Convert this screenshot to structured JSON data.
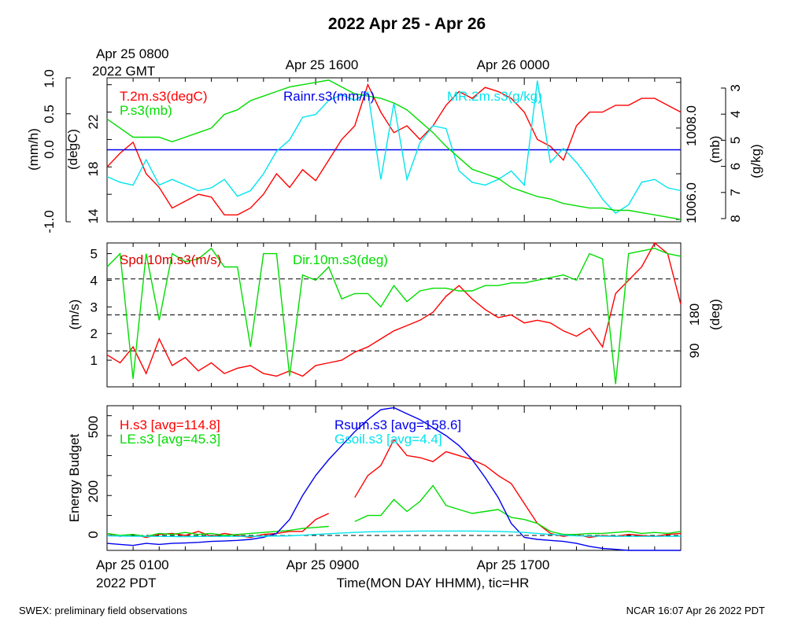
{
  "title": "2022 Apr 25 - Apr 26",
  "top_time_labels": [
    "Apr 25 0800",
    "Apr 25 1600",
    "Apr 26 0000"
  ],
  "top_time_sub": "2022 GMT",
  "bottom_time_labels": [
    "Apr 25 0100",
    "Apr 25 0900",
    "Apr 25 1700"
  ],
  "bottom_time_sub": "2022 PDT",
  "xlabel": "Time(MON DAY HHMM), tic=HR",
  "footer_left": "SWEX: preliminary field observations",
  "footer_right": "NCAR 16:07 Apr 26 2022 PDT",
  "colors": {
    "red": "#ff0000",
    "green": "#00dd00",
    "blue": "#0000ee",
    "cyan": "#00e5ee"
  },
  "chart_data": [
    {
      "type": "line",
      "x_unit": "hour since Apr 25 0000 PDT",
      "xlim": [
        1,
        23
      ],
      "axes": {
        "rain": {
          "ylabel": "(mm/h)",
          "ylim": [
            -1.0,
            1.0
          ],
          "ticks": [
            "-1.0",
            "0.0",
            "0.5",
            "1.0"
          ]
        },
        "temp": {
          "ylabel": "(degC)",
          "ylim": [
            14,
            24.5
          ],
          "ticks": [
            "14",
            "18",
            "22"
          ]
        },
        "pres": {
          "ylabel": "(mb)",
          "ylim": [
            1005.95,
            1009.1
          ],
          "ticks": [
            "1006.0",
            "1008.0"
          ]
        },
        "mr": {
          "ylabel": "(g/kg)",
          "ylim": [
            3,
            8.1
          ],
          "ticks": [
            "3",
            "4",
            "5",
            "6",
            "7",
            "8"
          ]
        }
      },
      "series": [
        {
          "name": "T.2m.s3(degC)",
          "axis": "temp",
          "color": "red",
          "x": [
            1,
            1.5,
            2,
            2.5,
            3,
            3.5,
            4,
            4.5,
            5,
            5.5,
            6,
            6.5,
            7,
            7.5,
            8,
            8.5,
            9,
            9.5,
            10,
            10.5,
            11,
            11.5,
            12,
            12.5,
            13,
            13.5,
            14,
            14.5,
            15,
            15.5,
            16,
            16.5,
            17,
            17.5,
            18,
            18.5,
            19,
            19.5,
            20,
            20.5,
            21,
            21.5,
            22,
            22.5,
            23
          ],
          "y": [
            18,
            19,
            19.8,
            17.5,
            16.5,
            15,
            15.5,
            16,
            15.8,
            14.5,
            14.5,
            15,
            16,
            17.5,
            16.5,
            17.8,
            17,
            18.5,
            20,
            21,
            24,
            22,
            20.5,
            21,
            20,
            21,
            22.5,
            23.5,
            23,
            23.8,
            23.5,
            23,
            22,
            20,
            19.5,
            18.5,
            21,
            22,
            22,
            22.5,
            22.5,
            23,
            23,
            22.5,
            22
          ]
        },
        {
          "name": "Rainr.s3(mm/h)",
          "axis": "rain",
          "color": "blue",
          "x": [
            1,
            23
          ],
          "y": [
            0,
            0
          ]
        },
        {
          "name": "MR.2m.s3(g/kg)",
          "axis": "mr",
          "color": "cyan",
          "x": [
            1,
            1.5,
            2,
            2.5,
            3,
            3.5,
            4,
            4.5,
            5,
            5.5,
            6,
            6.5,
            7,
            7.5,
            8,
            8.5,
            9,
            9.5,
            10,
            10.5,
            11,
            11.5,
            12,
            12.5,
            13,
            13.5,
            14,
            14.5,
            15,
            15.5,
            16,
            16.5,
            17,
            17.5,
            18,
            18.5,
            19,
            19.5,
            20,
            20.5,
            21,
            21.5,
            22,
            22.5,
            23
          ],
          "y": [
            4.6,
            4.4,
            4.3,
            5.2,
            4.3,
            4.5,
            4.3,
            4.1,
            4.2,
            4.5,
            3.9,
            4.1,
            4.7,
            5.5,
            5.9,
            6.7,
            6.8,
            7.3,
            7.5,
            7.3,
            7.6,
            4.5,
            7.2,
            4.5,
            5.8,
            6.4,
            6.3,
            4.8,
            4.4,
            4.3,
            4.5,
            4.8,
            4.3,
            8,
            5.1,
            5.6,
            5.1,
            4.5,
            3.8,
            3.3,
            3.6,
            4.4,
            4.5,
            4.2,
            4.1
          ]
        },
        {
          "name": "P.s3(mb)",
          "axis": "pres",
          "color": "green",
          "x": [
            1,
            1.5,
            2,
            2.5,
            3,
            3.5,
            4,
            4.5,
            5,
            5.5,
            6,
            6.5,
            7,
            7.5,
            8,
            8.5,
            9,
            9.5,
            10,
            10.5,
            11,
            11.5,
            12,
            12.5,
            13,
            13.5,
            14,
            14.5,
            15,
            15.5,
            16,
            16.5,
            17,
            17.5,
            18,
            18.5,
            19,
            19.5,
            20,
            20.5,
            21,
            21.5,
            22,
            22.5,
            23
          ],
          "y": [
            1008.2,
            1008.0,
            1007.8,
            1007.8,
            1007.8,
            1007.7,
            1007.8,
            1007.9,
            1008.0,
            1008.3,
            1008.4,
            1008.6,
            1008.7,
            1008.8,
            1008.9,
            1008.95,
            1009.0,
            1009.05,
            1008.9,
            1008.75,
            1008.7,
            1008.65,
            1008.55,
            1008.4,
            1008.15,
            1007.9,
            1007.6,
            1007.35,
            1007.1,
            1007.0,
            1006.9,
            1006.7,
            1006.6,
            1006.5,
            1006.45,
            1006.35,
            1006.3,
            1006.25,
            1006.25,
            1006.2,
            1006.2,
            1006.15,
            1006.1,
            1006.05,
            1006.0
          ]
        }
      ]
    },
    {
      "type": "line",
      "x_unit": "hour since Apr 25 0000 PDT",
      "xlim": [
        1,
        23
      ],
      "axes": {
        "spd": {
          "ylabel": "(m/s)",
          "ylim": [
            0,
            5.4
          ],
          "ticks": [
            "1",
            "2",
            "3",
            "4",
            "5"
          ]
        },
        "dir": {
          "ylabel": "(deg)",
          "ticks": [
            "90",
            "180"
          ],
          "ref_lines_deg": [
            90,
            180,
            270
          ]
        }
      },
      "series": [
        {
          "name": "Spd.10m.s3(m/s)",
          "axis": "spd",
          "color": "red",
          "x": [
            1,
            1.5,
            2,
            2.5,
            3,
            3.5,
            4,
            4.5,
            5,
            5.5,
            6,
            6.5,
            7,
            7.5,
            8,
            8.5,
            9,
            9.5,
            10,
            10.5,
            11,
            11.5,
            12,
            12.5,
            13,
            13.5,
            14,
            14.5,
            15,
            15.5,
            16,
            16.5,
            17,
            17.5,
            18,
            18.5,
            19,
            19.5,
            20,
            20.5,
            21,
            21.5,
            22,
            22.5,
            23
          ],
          "y": [
            1.2,
            0.9,
            1.5,
            0.5,
            1.8,
            0.8,
            1.1,
            0.6,
            0.9,
            0.5,
            0.7,
            0.8,
            0.5,
            0.4,
            0.6,
            0.4,
            0.8,
            0.9,
            1,
            1.3,
            1.5,
            1.8,
            2.1,
            2.3,
            2.5,
            2.8,
            3.4,
            3.8,
            3.3,
            2.9,
            2.6,
            2.7,
            2.4,
            2.5,
            2.4,
            2.1,
            1.9,
            2.2,
            1.5,
            3.5,
            4.0,
            4.5,
            5.4,
            5.0,
            3.1
          ]
        },
        {
          "name": "Dir.10m.s3(deg)",
          "axis": "spd",
          "color": "green",
          "x": [
            1,
            1.5,
            2,
            2.5,
            3,
            3.5,
            4,
            4.5,
            5,
            5.5,
            6,
            6.5,
            7,
            7.5,
            8,
            8.5,
            9,
            9.5,
            10,
            10.5,
            11,
            11.5,
            12,
            12.5,
            13,
            13.5,
            14,
            14.5,
            15,
            15.5,
            16,
            16.5,
            17,
            17.5,
            18,
            18.5,
            19,
            19.5,
            20,
            20.5,
            21,
            21.5,
            22,
            22.5,
            23
          ],
          "y": [
            4.5,
            5,
            0.3,
            5.0,
            2.5,
            5.0,
            4.7,
            4.8,
            5.2,
            4.5,
            4.5,
            1.5,
            5,
            5,
            0.4,
            4.2,
            4.0,
            4.5,
            3.3,
            3.5,
            3.5,
            3.0,
            3.8,
            3.2,
            3.6,
            3.7,
            3.7,
            3.6,
            3.6,
            3.8,
            3.8,
            3.9,
            3.9,
            4.0,
            4.1,
            4.2,
            4.0,
            5.0,
            4.8,
            0.1,
            5.0,
            5.1,
            5.2,
            5.0,
            4.9
          ]
        }
      ]
    },
    {
      "type": "line",
      "x_unit": "hour since Apr 25 0000 PDT",
      "xlim": [
        1,
        23
      ],
      "ylabel": "Energy Budget",
      "ylim": [
        -75,
        650
      ],
      "ticks": [
        "0",
        "200",
        "500"
      ],
      "series": [
        {
          "name": "H.s3 [avg=114.8]",
          "color": "red",
          "x": [
            1,
            1.5,
            2,
            2.5,
            3,
            3.5,
            4,
            4.5,
            5,
            5.5,
            6,
            6.5,
            7,
            7.5,
            8,
            8.5,
            9,
            9.5,
            10,
            10.5,
            11,
            11.5,
            12,
            12.5,
            13,
            13.5,
            14,
            14.5,
            15,
            15.5,
            16,
            16.5,
            17,
            17.5,
            18,
            18.5,
            19,
            19.5,
            20,
            20.5,
            21,
            21.5,
            22,
            22.5,
            23
          ],
          "y": [
            10,
            -5,
            5,
            -10,
            5,
            10,
            0,
            20,
            -5,
            10,
            0,
            -10,
            5,
            10,
            20,
            20,
            80,
            110,
            null,
            190,
            300,
            350,
            480,
            400,
            390,
            370,
            420,
            400,
            380,
            350,
            300,
            260,
            160,
            60,
            10,
            -5,
            5,
            -10,
            0,
            -5,
            5,
            0,
            -5,
            5,
            10
          ]
        },
        {
          "name": "LE.s3 [avg=45.3]",
          "color": "green",
          "x": [
            1,
            1.5,
            2,
            2.5,
            3,
            3.5,
            4,
            4.5,
            5,
            5.5,
            6,
            6.5,
            7,
            7.5,
            8,
            8.5,
            9,
            9.5,
            10,
            10.5,
            11,
            11.5,
            12,
            12.5,
            13,
            13.5,
            14,
            14.5,
            15,
            15.5,
            16,
            16.5,
            17,
            17.5,
            18,
            18.5,
            19,
            19.5,
            20,
            20.5,
            21,
            21.5,
            22,
            22.5,
            23
          ],
          "y": [
            10,
            0,
            5,
            -5,
            10,
            5,
            15,
            5,
            10,
            0,
            5,
            10,
            15,
            20,
            25,
            35,
            40,
            45,
            null,
            70,
            100,
            100,
            180,
            120,
            170,
            250,
            150,
            130,
            110,
            120,
            130,
            90,
            80,
            60,
            20,
            5,
            5,
            10,
            10,
            15,
            20,
            10,
            15,
            10,
            20
          ]
        },
        {
          "name": "Rsum.s3 [avg=158.6]",
          "color": "blue",
          "x": [
            1,
            1.5,
            2,
            2.5,
            3,
            3.5,
            4,
            4.5,
            5,
            5.5,
            6,
            6.5,
            7,
            7.5,
            8,
            8.5,
            9,
            9.5,
            10,
            10.5,
            11,
            11.5,
            12,
            12.5,
            13,
            13.5,
            14,
            14.5,
            15,
            15.5,
            16,
            16.5,
            17,
            17.5,
            18,
            18.5,
            19,
            19.5,
            20,
            20.5,
            21,
            21.5,
            22,
            22.5,
            23
          ],
          "y": [
            -40,
            -45,
            -50,
            -40,
            -45,
            -40,
            -38,
            -35,
            -30,
            -28,
            -25,
            -20,
            -10,
            10,
            80,
            200,
            300,
            380,
            450,
            520,
            580,
            630,
            640,
            610,
            580,
            540,
            500,
            450,
            380,
            290,
            190,
            60,
            -10,
            -20,
            -25,
            -30,
            -40,
            -55,
            -65,
            -70,
            -75,
            -75,
            -75,
            -75,
            -75
          ]
        },
        {
          "name": "Gsoil.s3 [avg=4.4]",
          "color": "cyan",
          "x": [
            1,
            2,
            3,
            4,
            5,
            6,
            7,
            8,
            9,
            10,
            11,
            12,
            13,
            14,
            15,
            16,
            17,
            18,
            19,
            20,
            21,
            22,
            23
          ],
          "y": [
            -2,
            -4,
            -5,
            -6,
            -5,
            -5,
            -4,
            -2,
            5,
            12,
            18,
            20,
            22,
            22,
            22,
            20,
            15,
            5,
            -2,
            -4,
            -5,
            -5,
            -4
          ]
        }
      ]
    }
  ]
}
